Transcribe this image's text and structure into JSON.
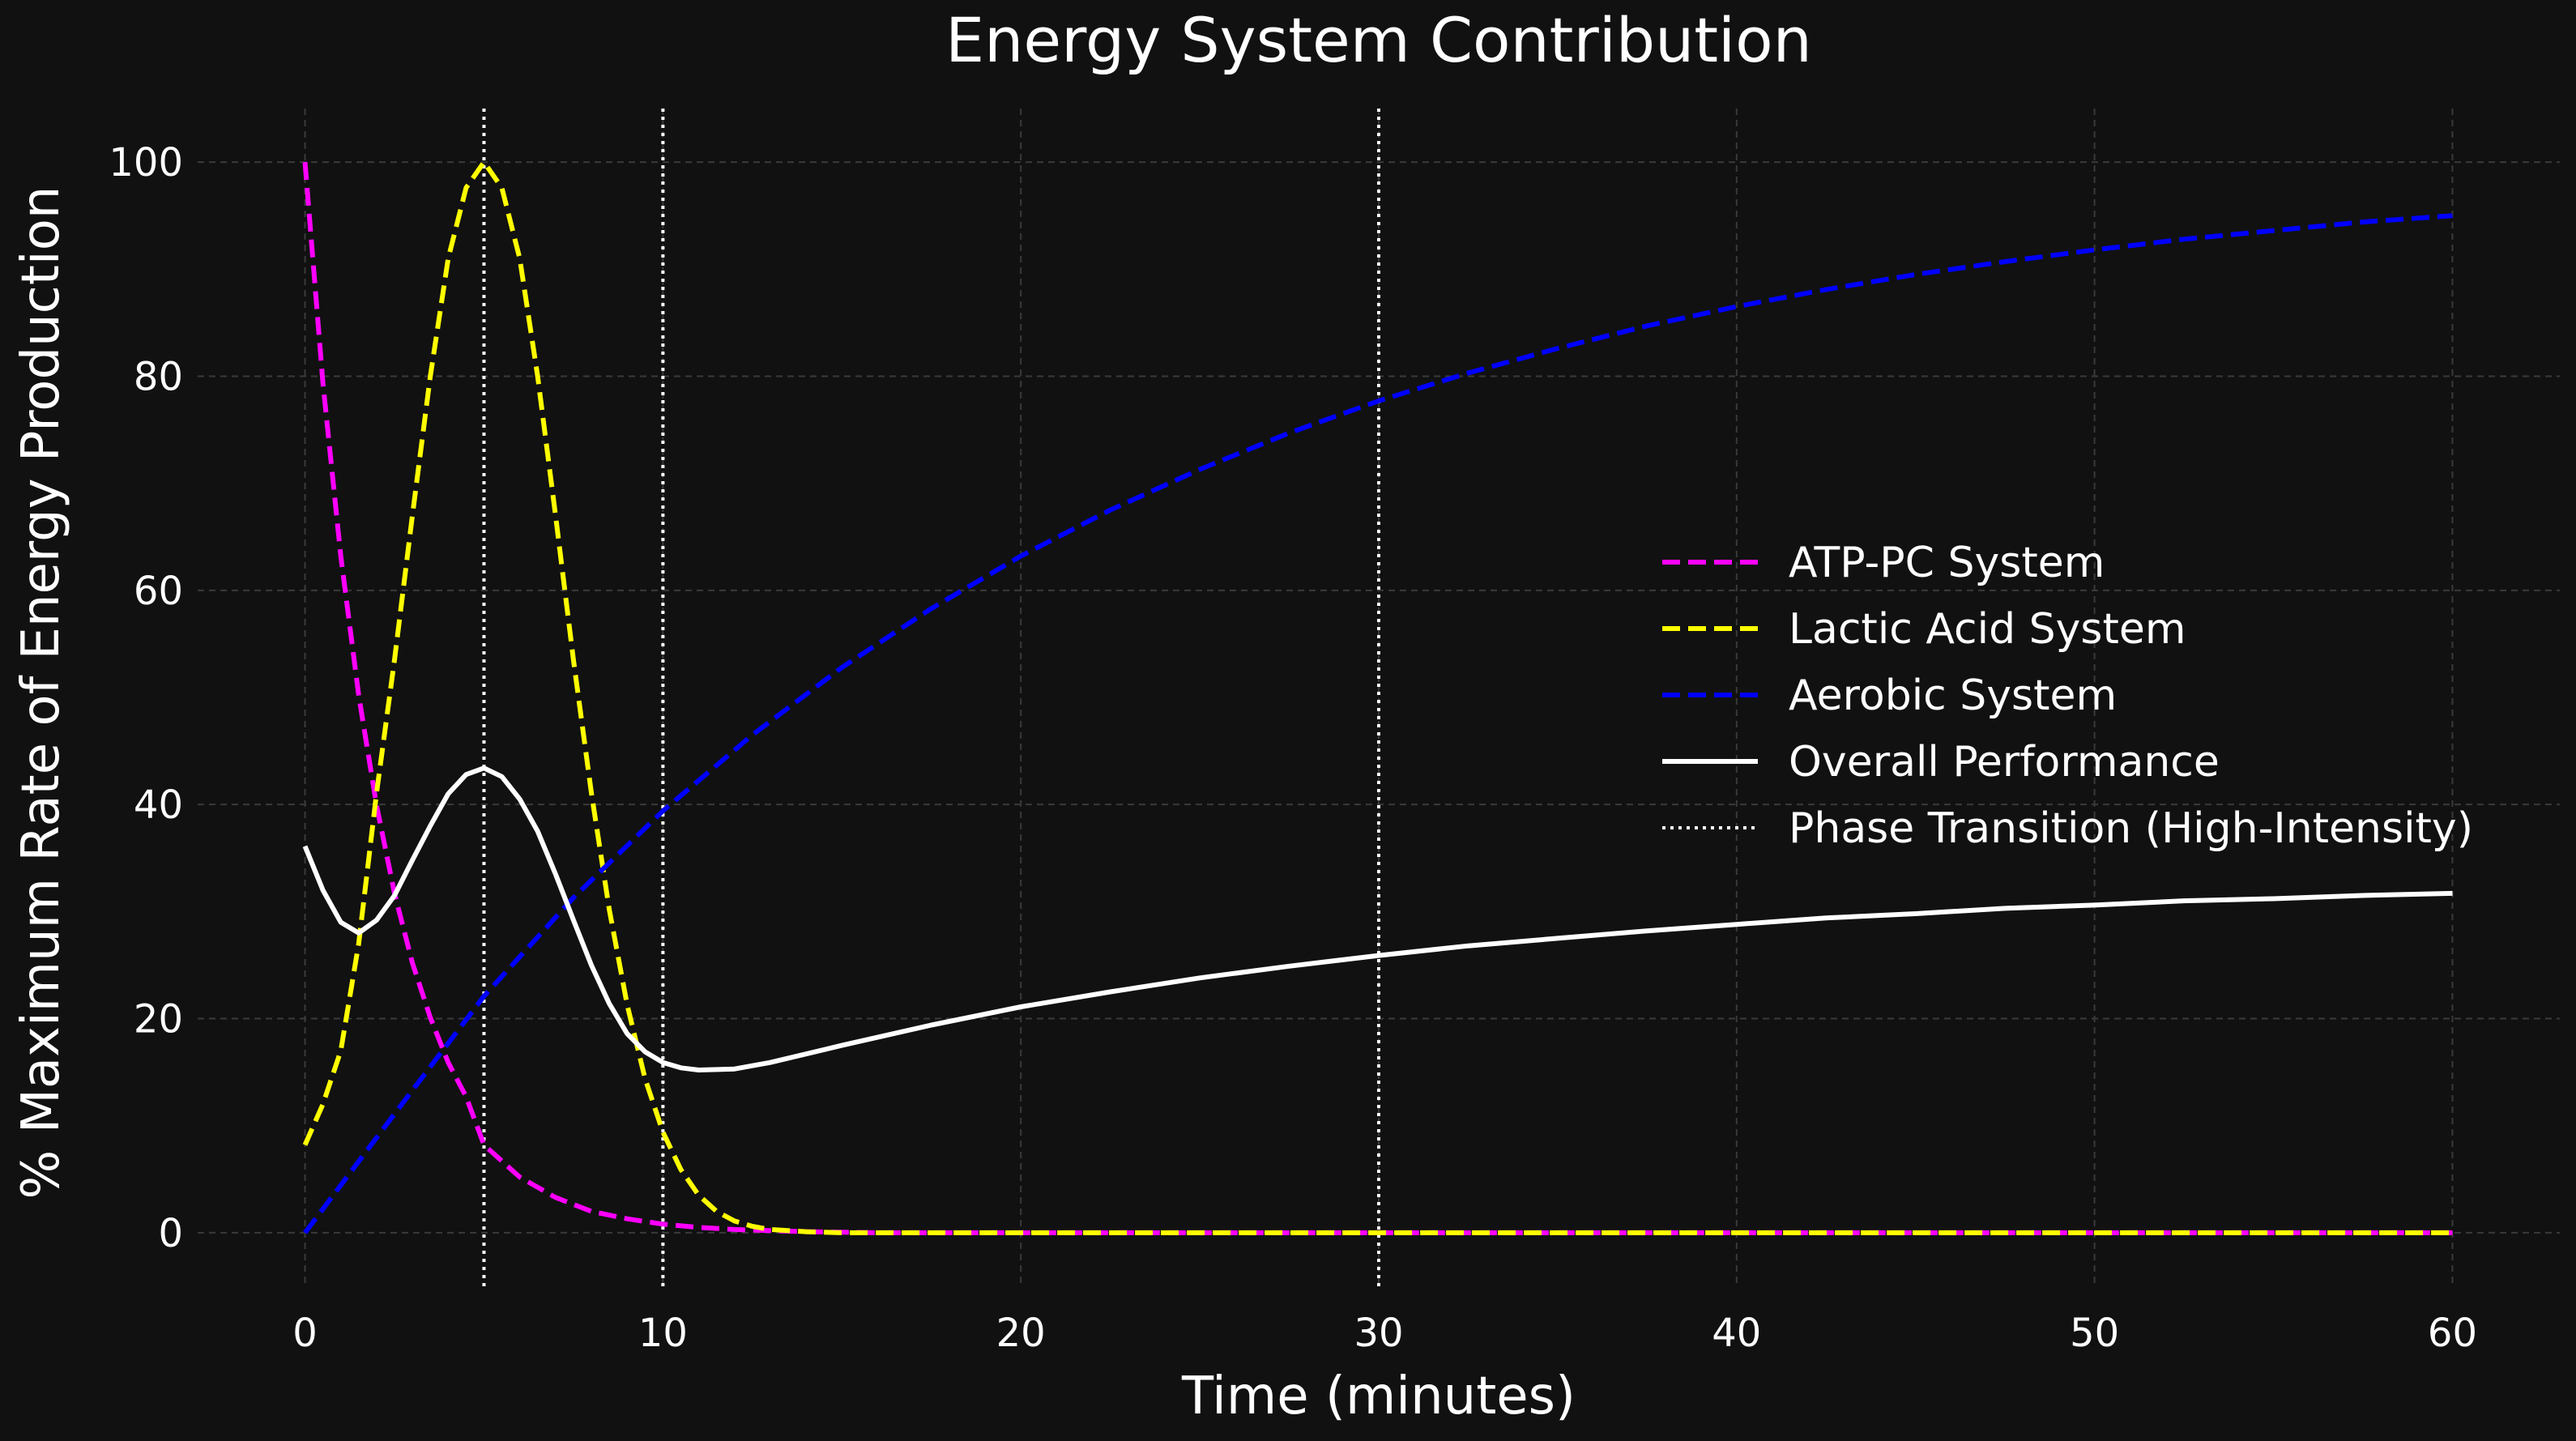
{
  "chart_data": {
    "type": "line",
    "title": "Energy System Contribution",
    "xlabel": "Time (minutes)",
    "ylabel": "% Maximum Rate of Energy Production",
    "xlim": [
      -3,
      63
    ],
    "ylim": [
      -5,
      105
    ],
    "x_ticks": [
      0,
      10,
      20,
      30,
      40,
      50,
      60
    ],
    "y_ticks": [
      0,
      20,
      40,
      60,
      80,
      100
    ],
    "grid": true,
    "legend_position": "center-right",
    "background": "#111111",
    "series": [
      {
        "name": "ATP-PC System",
        "color": "#ff00ff",
        "style": "dashed",
        "points": [
          [
            0,
            100
          ],
          [
            0.5,
            79.4
          ],
          [
            1,
            63.2
          ],
          [
            1.5,
            50.2
          ],
          [
            2,
            39.9
          ],
          [
            2.5,
            31.7
          ],
          [
            3,
            25.2
          ],
          [
            3.5,
            20.1
          ],
          [
            4,
            15.9
          ],
          [
            4.5,
            12.7
          ],
          [
            5,
            8.2
          ],
          [
            6,
            5.2
          ],
          [
            7,
            3.3
          ],
          [
            8,
            2.0
          ],
          [
            9,
            1.3
          ],
          [
            10,
            0.8
          ],
          [
            11,
            0.5
          ],
          [
            12,
            0.3
          ],
          [
            13,
            0.2
          ],
          [
            14,
            0.1
          ],
          [
            16,
            0
          ],
          [
            20,
            0
          ],
          [
            30,
            0
          ],
          [
            40,
            0
          ],
          [
            50,
            0
          ],
          [
            60,
            0
          ]
        ]
      },
      {
        "name": "Lactic Acid System",
        "color": "#ffff00",
        "style": "dashed",
        "points": [
          [
            0,
            8.2
          ],
          [
            0.5,
            12.0
          ],
          [
            1,
            17.0
          ],
          [
            1.5,
            27.0
          ],
          [
            2,
            41.1
          ],
          [
            2.5,
            53.5
          ],
          [
            3,
            67.0
          ],
          [
            3.5,
            80.0
          ],
          [
            4,
            91.0
          ],
          [
            4.5,
            97.6
          ],
          [
            5,
            100
          ],
          [
            5.5,
            97.6
          ],
          [
            6,
            91.0
          ],
          [
            6.5,
            80.0
          ],
          [
            7,
            67.0
          ],
          [
            7.5,
            53.5
          ],
          [
            8,
            41.1
          ],
          [
            8.5,
            30.2
          ],
          [
            9,
            21.3
          ],
          [
            9.5,
            14.4
          ],
          [
            10,
            9.4
          ],
          [
            10.5,
            5.9
          ],
          [
            11,
            3.5
          ],
          [
            11.5,
            2.0
          ],
          [
            12,
            1.1
          ],
          [
            12.5,
            0.6
          ],
          [
            13,
            0.3
          ],
          [
            14,
            0.1
          ],
          [
            15,
            0
          ],
          [
            20,
            0
          ],
          [
            30,
            0
          ],
          [
            40,
            0
          ],
          [
            50,
            0
          ],
          [
            60,
            0
          ]
        ]
      },
      {
        "name": "Aerobic System",
        "color": "#0000ff",
        "style": "dashed",
        "points": [
          [
            0,
            0
          ],
          [
            2.5,
            11.1
          ],
          [
            5,
            22.1
          ],
          [
            7.5,
            31.3
          ],
          [
            10,
            39.4
          ],
          [
            12.5,
            46.5
          ],
          [
            15,
            52.8
          ],
          [
            17.5,
            58.3
          ],
          [
            20,
            63.2
          ],
          [
            22.5,
            67.5
          ],
          [
            25,
            71.3
          ],
          [
            27.5,
            74.7
          ],
          [
            30,
            77.7
          ],
          [
            32.5,
            80.3
          ],
          [
            35,
            82.6
          ],
          [
            37.5,
            84.7
          ],
          [
            40,
            86.5
          ],
          [
            42.5,
            88.1
          ],
          [
            45,
            89.5
          ],
          [
            47.5,
            90.7
          ],
          [
            50,
            91.8
          ],
          [
            52.5,
            92.8
          ],
          [
            55,
            93.6
          ],
          [
            57.5,
            94.4
          ],
          [
            60,
            95.0
          ]
        ]
      },
      {
        "name": "Overall Performance",
        "color": "#ffffff",
        "style": "solid",
        "points": [
          [
            0,
            36.1
          ],
          [
            0.5,
            32.0
          ],
          [
            1,
            29.0
          ],
          [
            1.5,
            28.0
          ],
          [
            2,
            29.2
          ],
          [
            2.5,
            31.5
          ],
          [
            3,
            34.8
          ],
          [
            3.5,
            38.0
          ],
          [
            4,
            41.0
          ],
          [
            4.5,
            42.8
          ],
          [
            5,
            43.4
          ],
          [
            5.5,
            42.6
          ],
          [
            6,
            40.5
          ],
          [
            6.5,
            37.5
          ],
          [
            7,
            33.5
          ],
          [
            7.5,
            29.2
          ],
          [
            8,
            25.0
          ],
          [
            8.5,
            21.4
          ],
          [
            9,
            18.6
          ],
          [
            9.5,
            16.9
          ],
          [
            10,
            15.9
          ],
          [
            10.5,
            15.4
          ],
          [
            11,
            15.2
          ],
          [
            12,
            15.3
          ],
          [
            13,
            15.9
          ],
          [
            15,
            17.5
          ],
          [
            17.5,
            19.4
          ],
          [
            20,
            21.1
          ],
          [
            22.5,
            22.5
          ],
          [
            25,
            23.8
          ],
          [
            27.5,
            24.9
          ],
          [
            30,
            25.9
          ],
          [
            32.5,
            26.8
          ],
          [
            35,
            27.5
          ],
          [
            37.5,
            28.2
          ],
          [
            40,
            28.8
          ],
          [
            42.5,
            29.4
          ],
          [
            45,
            29.8
          ],
          [
            47.5,
            30.3
          ],
          [
            50,
            30.6
          ],
          [
            52.5,
            31.0
          ],
          [
            55,
            31.2
          ],
          [
            57.5,
            31.5
          ],
          [
            60,
            31.7
          ]
        ]
      },
      {
        "name": "Phase Transition (High-Intensity)",
        "color": "#ffffff",
        "style": "dotted",
        "vlines": [
          5,
          10,
          30
        ]
      }
    ]
  }
}
